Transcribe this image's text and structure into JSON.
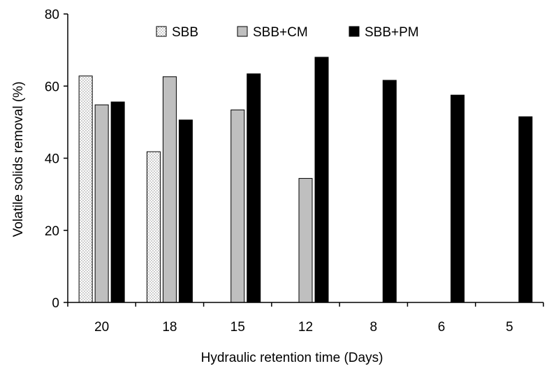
{
  "chart_data": {
    "type": "bar",
    "categories": [
      "20",
      "18",
      "15",
      "12",
      "8",
      "6",
      "5"
    ],
    "series": [
      {
        "name": "SBB",
        "values": [
          62.8,
          41.8,
          null,
          null,
          null,
          null,
          null
        ],
        "pattern": "dotted"
      },
      {
        "name": "SBB+CM",
        "values": [
          54.8,
          62.6,
          53.4,
          34.4,
          null,
          null,
          null
        ],
        "color": "#bfbfbf"
      },
      {
        "name": "SBB+PM",
        "values": [
          55.6,
          50.6,
          63.4,
          68.0,
          61.6,
          57.5,
          51.5
        ],
        "color": "#000000"
      }
    ],
    "xlabel": "Hydraulic retention time (Days)",
    "ylabel": "Volatile solids removal (%)",
    "ylim": [
      0,
      80
    ],
    "yticks": [
      0,
      20,
      40,
      60,
      80
    ],
    "grid": false,
    "legend_position": "top"
  }
}
